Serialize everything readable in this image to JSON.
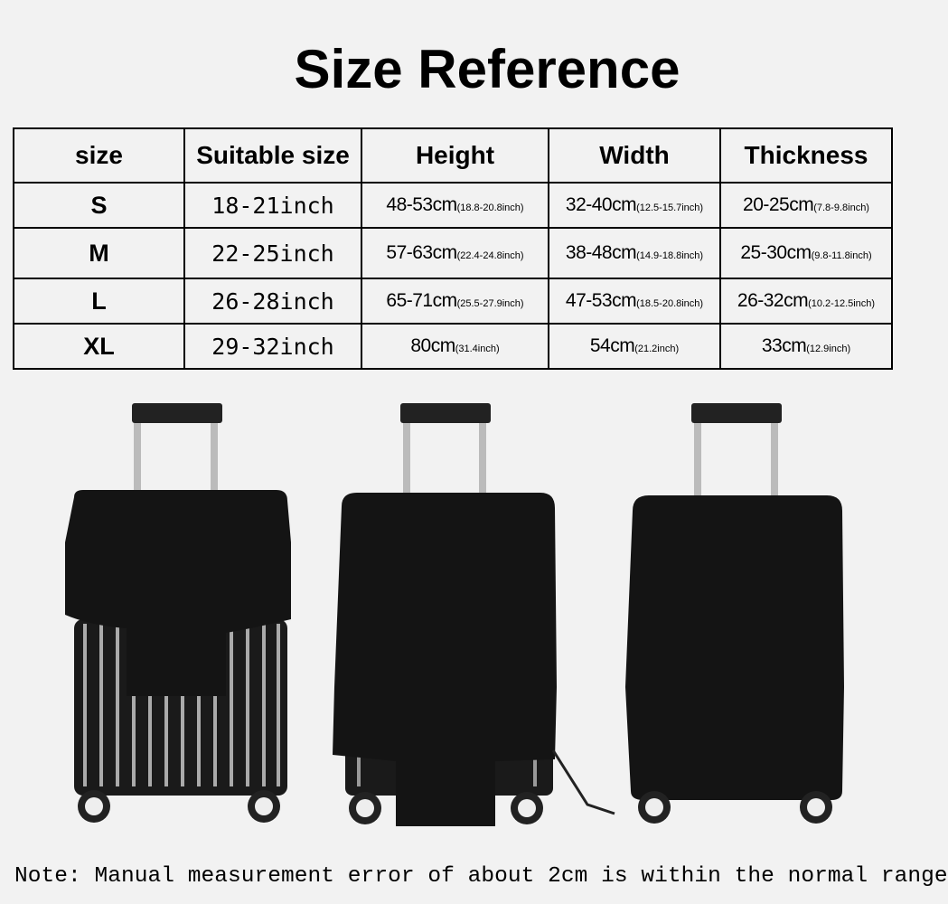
{
  "title": "Size Reference",
  "table": {
    "headers": [
      "size",
      "Suitable size",
      "Height",
      "Width",
      "Thickness"
    ],
    "rows": [
      {
        "size": "S",
        "suitable": "18-21inch",
        "height_cm": "48-53cm",
        "height_in": "(18.8-20.8inch)",
        "width_cm": "32-40cm",
        "width_in": "(12.5-15.7inch)",
        "thick_cm": "20-25cm",
        "thick_in": "(7.8-9.8inch)"
      },
      {
        "size": "M",
        "suitable": "22-25inch",
        "height_cm": "57-63cm",
        "height_in": "(22.4-24.8inch)",
        "width_cm": "38-48cm",
        "width_in": "(14.9-18.8inch)",
        "thick_cm": "25-30cm",
        "thick_in": "(9.8-11.8inch)"
      },
      {
        "size": "L",
        "suitable": "26-28inch",
        "height_cm": "65-71cm",
        "height_in": "(25.5-27.9inch)",
        "width_cm": "47-53cm",
        "width_in": "(18.5-20.8inch)",
        "thick_cm": "26-32cm",
        "thick_in": "(10.2-12.5inch)"
      },
      {
        "size": "XL",
        "suitable": "29-32inch",
        "height_cm": "80cm",
        "height_in": "(31.4inch)",
        "width_cm": "54cm",
        "width_in": "(21.2inch)",
        "thick_cm": "33cm",
        "thick_in": "(12.9inch)"
      }
    ]
  },
  "images": [
    "suitcase-cover-partially-on",
    "suitcase-cover-pulled-up",
    "suitcase-cover-fully-on"
  ],
  "note": "Note: Manual measurement error of about 2cm is within the normal range"
}
